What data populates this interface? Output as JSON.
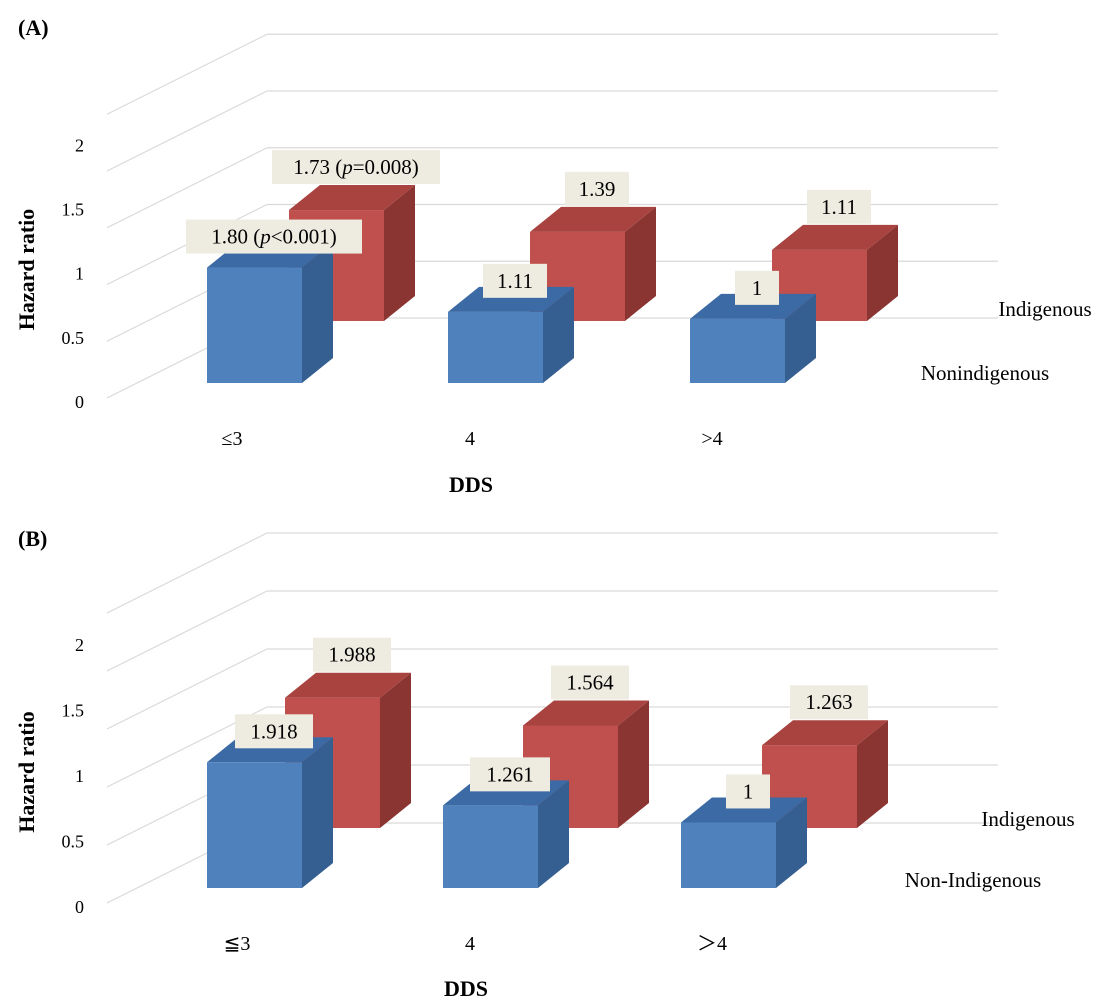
{
  "chart_data": [
    {
      "panel": "(A)",
      "type": "bar",
      "ylabel": "Hazard ratio",
      "xlabel": "DDS",
      "categories": [
        "≤3",
        "4",
        ">4"
      ],
      "yticks": [
        "0",
        "0.5",
        "1",
        "1.5",
        "2"
      ],
      "ylim": [
        0,
        2
      ],
      "grid": true,
      "three_d": true,
      "series": [
        {
          "name": "Nonindigenous",
          "values": [
            1.8,
            1.11,
            1.0
          ],
          "labels": [
            "1.80 (",
            "1.11",
            "1"
          ],
          "color": "#4f81bd"
        },
        {
          "name": "Indigenous",
          "values": [
            1.73,
            1.39,
            1.11
          ],
          "labels": [
            "1.73 (",
            "1.39",
            "1.11"
          ],
          "color": "#c0504d"
        }
      ],
      "pvalues": {
        "Nonindigenous": {
          "italic": "p",
          "rest": "<0.001)"
        },
        "Indigenous": {
          "italic": "p",
          "rest": "=0.008)"
        }
      }
    },
    {
      "panel": "(B)",
      "type": "bar",
      "ylabel": "Hazard ratio",
      "xlabel": "DDS",
      "categories": [
        "≦3",
        "4",
        "＞4"
      ],
      "yticks": [
        "0",
        "0.5",
        "1",
        "1.5",
        "2"
      ],
      "ylim": [
        0,
        2
      ],
      "grid": true,
      "three_d": true,
      "series": [
        {
          "name": "Non-Indigenous",
          "values": [
            1.918,
            1.261,
            1.0
          ],
          "labels": [
            "1.918",
            "1.261",
            "1"
          ],
          "color": "#4f81bd"
        },
        {
          "name": "Indigenous",
          "values": [
            1.988,
            1.564,
            1.263
          ],
          "labels": [
            "1.988",
            "1.564",
            "1.263"
          ],
          "color": "#c0504d"
        }
      ]
    }
  ]
}
